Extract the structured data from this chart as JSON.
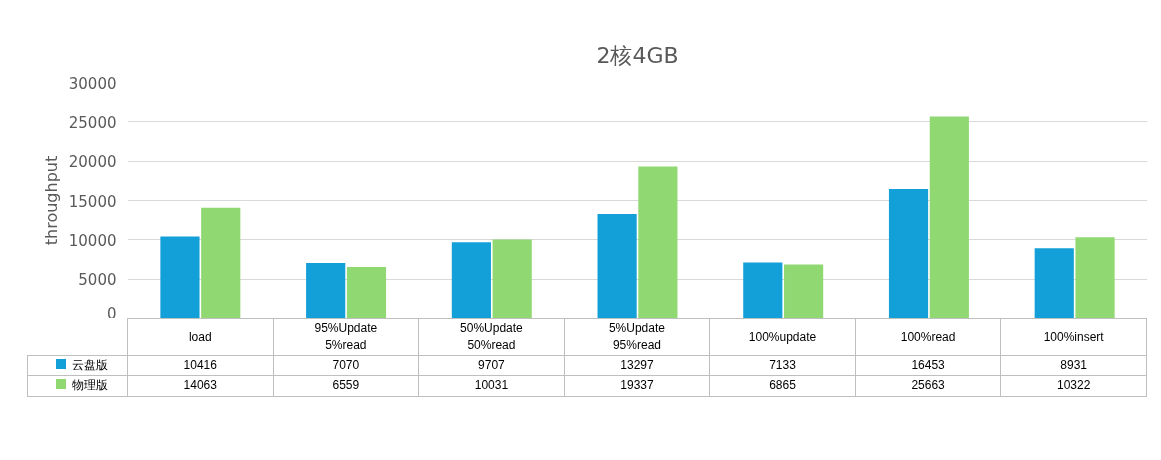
{
  "chart_data": {
    "type": "bar",
    "title": "2核4GB",
    "ylabel": "throughput",
    "categories": [
      "load",
      "95%Update\n5%read",
      "50%Update\n50%read",
      "5%Update\n95%read",
      "100%update",
      "100%read",
      "100%insert"
    ],
    "series": [
      {
        "name": "云盘版",
        "color": "#139fd8",
        "values": [
          10416,
          7070,
          9707,
          13297,
          7133,
          16453,
          8931
        ]
      },
      {
        "name": "物理版",
        "color": "#8fd872",
        "values": [
          14063,
          6559,
          10031,
          19337,
          6865,
          25663,
          10322
        ]
      }
    ],
    "ylim": [
      0,
      30000
    ],
    "yticks": [
      0,
      5000,
      10000,
      15000,
      20000,
      25000,
      30000
    ],
    "grid": "y",
    "legend": "bottom",
    "data_labels": true
  }
}
